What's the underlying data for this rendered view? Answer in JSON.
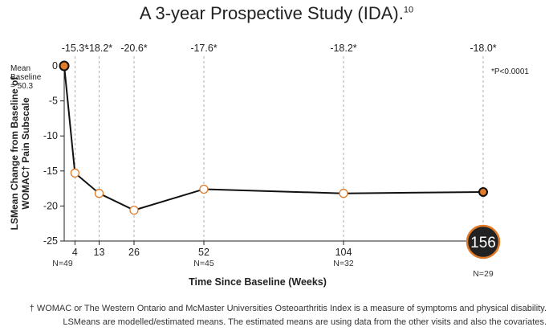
{
  "title": "A 3-year Prospective Study (IDA).",
  "title_ref": "10",
  "footnote1": "† WOMAC or The Western Ontario and McMaster Universities Osteoarthritis Index is a measure of symptoms and physical disability.",
  "footnote2": "LSMeans are modelled/estimated means. The estimated means are using data from the other visits and also the covariates.",
  "colors": {
    "accent": "#e07b2a",
    "line": "#111111",
    "grid": "#9a9a9a",
    "highlight_fill": "#222222"
  },
  "chart_data": {
    "type": "line",
    "x": [
      0,
      4,
      13,
      26,
      52,
      104,
      156
    ],
    "tick_labels": [
      "4",
      "13",
      "26",
      "52",
      "104",
      "156"
    ],
    "values": [
      0,
      -15.3,
      -18.2,
      -20.6,
      -17.6,
      -18.2,
      -18.0
    ],
    "top_labels": [
      "-15.3*",
      "-18.2*",
      "-20.6*",
      "-17.6*",
      "-18.2*",
      "-18.0*"
    ],
    "n_labels": [
      {
        "x": 0,
        "text": "N=49"
      },
      {
        "x": 52,
        "text": "N=45"
      },
      {
        "x": 104,
        "text": "N=32"
      },
      {
        "x": 156,
        "text": "N=29"
      }
    ],
    "y_ticks": [
      0,
      -5,
      -10,
      -15,
      -20,
      -25
    ],
    "ylim": [
      -25,
      0
    ],
    "xlabel": "Time Since Baseline (Weeks)",
    "ylabel_line1": "LSMean Change from Baseline of",
    "ylabel_line2": "WOMAC† Pain Subscale",
    "baseline_note": [
      "Mean",
      "Baseline",
      "= 50.3"
    ],
    "significance_note": "*P<0.0001",
    "highlight_label": "156"
  }
}
